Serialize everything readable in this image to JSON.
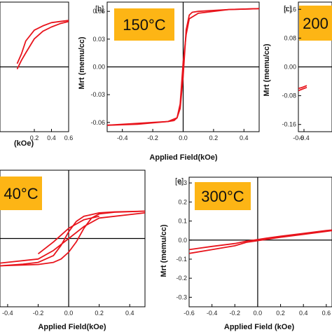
{
  "chart_data": [
    {
      "type": "line",
      "panel": "",
      "temperature_label": "",
      "xlabel": "(kOe)",
      "ylabel": "",
      "xlim": [
        -0.2,
        0.6
      ],
      "ylim": [
        -0.06,
        0.06
      ],
      "xticks": [
        "0.2",
        "0.4",
        "0.6"
      ],
      "yticks": [],
      "series": [
        {
          "x": [
            0.0,
            0.05,
            0.1,
            0.2,
            0.3,
            0.4,
            0.5,
            0.6
          ],
          "y": [
            0.003,
            0.012,
            0.024,
            0.034,
            0.038,
            0.041,
            0.042,
            0.043
          ]
        },
        {
          "x": [
            0.0,
            0.05,
            0.1,
            0.2,
            0.3,
            0.4,
            0.5,
            0.6
          ],
          "y": [
            -0.002,
            0.006,
            0.013,
            0.026,
            0.033,
            0.037,
            0.04,
            0.042
          ]
        }
      ]
    },
    {
      "type": "line",
      "panel": "[b]",
      "temperature_label": "150°C",
      "xlabel": "Applied Field(kOe)",
      "ylabel": "Mrt (memu/cc)",
      "xlim": [
        -0.5,
        0.5
      ],
      "ylim": [
        -0.07,
        0.07
      ],
      "xticks": [
        "-0.4",
        "-0.2",
        "0.0",
        "0.2",
        "0.4"
      ],
      "yticks": [
        "0.06",
        "0.03",
        "0.00",
        "-0.03",
        "-0.06"
      ],
      "series": [
        {
          "x": [
            -0.5,
            -0.3,
            -0.1,
            -0.04,
            -0.02,
            0.0,
            0.02,
            0.04,
            0.06,
            0.1,
            0.2,
            0.3,
            0.5
          ],
          "y": [
            -0.063,
            -0.062,
            -0.059,
            -0.055,
            -0.045,
            -0.01,
            0.04,
            0.056,
            0.059,
            0.06,
            0.061,
            0.062,
            0.063
          ]
        },
        {
          "x": [
            0.5,
            0.3,
            0.1,
            0.04,
            0.02,
            0.0,
            -0.02,
            -0.04,
            -0.06,
            -0.1,
            -0.2,
            -0.3,
            -0.5
          ],
          "y": [
            0.063,
            0.062,
            0.058,
            0.052,
            0.035,
            0.005,
            -0.04,
            -0.055,
            -0.058,
            -0.059,
            -0.06,
            -0.061,
            -0.063
          ]
        }
      ]
    },
    {
      "type": "line",
      "panel": "[c]",
      "temperature_label": "200",
      "xlabel": "",
      "ylabel": "Mrt (memu/cc)",
      "xlim": [
        -0.6,
        0.6
      ],
      "ylim": [
        -0.18,
        0.18
      ],
      "xticks": [
        "-0.6",
        "-0.4"
      ],
      "yticks": [
        "0.16",
        "0.08",
        "0.00",
        "-0.08",
        "-0.16"
      ],
      "series": [
        {
          "x": [
            -0.6,
            -0.5,
            -0.4,
            -0.3
          ],
          "y": [
            -0.06,
            -0.058,
            -0.055,
            -0.052
          ]
        },
        {
          "x": [
            -0.6,
            -0.5,
            -0.4,
            -0.3
          ],
          "y": [
            -0.066,
            -0.063,
            -0.06,
            -0.057
          ]
        }
      ]
    },
    {
      "type": "line",
      "panel": "",
      "temperature_label": "40°C",
      "xlabel": "Applied Field(kOe)",
      "ylabel": "",
      "xlim": [
        -0.45,
        0.5
      ],
      "ylim": [
        -0.2,
        0.2
      ],
      "xticks": [
        "-0.4",
        "-0.2",
        "0.0",
        "0.2",
        "0.4"
      ],
      "yticks": [],
      "series": [
        {
          "x": [
            -0.45,
            -0.3,
            -0.2,
            -0.1,
            -0.05,
            0.0,
            0.05,
            0.1,
            0.15,
            0.2,
            0.3,
            0.5
          ],
          "y": [
            -0.08,
            -0.075,
            -0.07,
            -0.05,
            -0.02,
            0.02,
            0.05,
            0.065,
            0.07,
            0.075,
            0.078,
            0.08
          ]
        },
        {
          "x": [
            0.5,
            0.3,
            0.2,
            0.15,
            0.1,
            0.05,
            0.0,
            -0.05,
            -0.1,
            -0.15,
            -0.2,
            -0.45
          ],
          "y": [
            0.08,
            0.077,
            0.072,
            0.06,
            0.03,
            -0.01,
            -0.04,
            -0.06,
            -0.07,
            -0.073,
            -0.076,
            -0.08
          ]
        },
        {
          "x": [
            -0.45,
            -0.2,
            -0.1,
            0.0,
            0.1,
            0.2,
            0.5
          ],
          "y": [
            -0.072,
            -0.06,
            -0.035,
            0.0,
            0.035,
            0.06,
            0.075
          ]
        },
        {
          "x": [
            -0.2,
            -0.1,
            0.0,
            0.1,
            0.2
          ],
          "y": [
            -0.045,
            -0.01,
            0.03,
            0.055,
            0.065
          ]
        }
      ]
    },
    {
      "type": "line",
      "panel": "[e]",
      "temperature_label": "300°C",
      "xlabel": "Applied Field (kOe)",
      "ylabel": "Mrt (memu/cc)",
      "xlim": [
        -0.6,
        0.65
      ],
      "ylim": [
        -0.35,
        0.33
      ],
      "xticks": [
        "-0.6",
        "-0.4",
        "-0.2",
        "0.0",
        "0.2",
        "0.4",
        "0.6"
      ],
      "yticks": [
        "0.3",
        "0.2",
        "0.1",
        "0.0",
        "-0.1",
        "-0.2",
        "-0.3"
      ],
      "series": [
        {
          "x": [
            -0.6,
            -0.4,
            -0.2,
            -0.1,
            0.0,
            0.1,
            0.2,
            0.4,
            0.6,
            0.65
          ],
          "y": [
            -0.05,
            -0.033,
            -0.018,
            -0.006,
            0.003,
            0.012,
            0.02,
            0.035,
            0.05,
            0.053
          ]
        },
        {
          "x": [
            -0.6,
            -0.4,
            -0.2,
            -0.1,
            0.0,
            0.1,
            0.2,
            0.4,
            0.6,
            0.65
          ],
          "y": [
            -0.07,
            -0.05,
            -0.03,
            -0.012,
            -0.003,
            0.006,
            0.015,
            0.03,
            0.046,
            0.05
          ]
        }
      ]
    }
  ],
  "colors": {
    "curve": "#e8141c",
    "badge": "#fdb515",
    "axis": "#000000"
  }
}
